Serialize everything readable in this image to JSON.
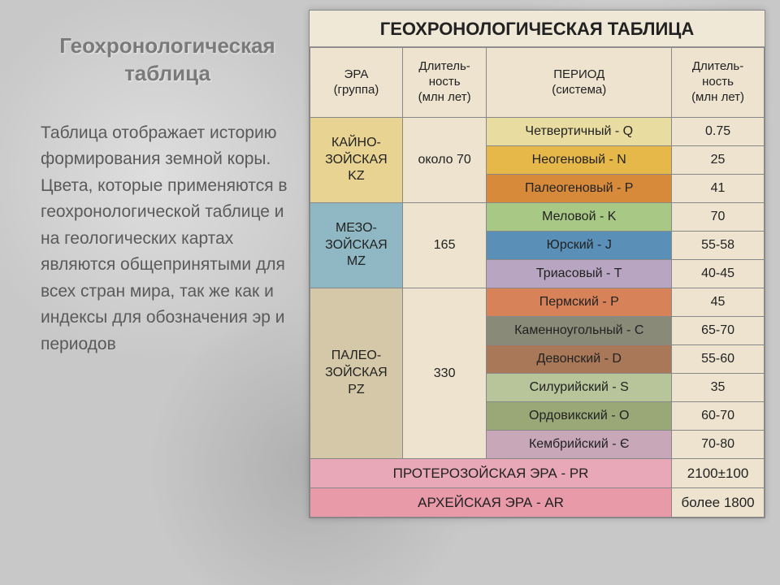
{
  "left_panel": {
    "heading": "Геохронологическая таблица",
    "paragraph": "Таблица отображает историю формирования земной коры. Цвета, которые применяются в геохронологической таблице и на геологических картах являются общепринятыми для всех стран мира, так же как и индексы для обозначения эр и периодов"
  },
  "table": {
    "title": "ГЕОХРОНОЛОГИЧЕСКАЯ ТАБЛИЦА",
    "headers": {
      "era": "ЭРА\n(группа)",
      "dur1": "Длитель-\nность\n(млн лет)",
      "period": "ПЕРИОД\n(система)",
      "dur2": "Длитель-\nность\n(млн лет)"
    },
    "eras": [
      {
        "name": "КАЙНО-\nЗОЙСКАЯ\nKZ",
        "era_bg": "#e8d392",
        "duration": "около 70",
        "dur_bg": "#ede3cf",
        "periods": [
          {
            "name": "Четвертичный - Q",
            "dur": "0.75",
            "bg": "#e8dca0"
          },
          {
            "name": "Неогеновый - N",
            "dur": "25",
            "bg": "#e6b84a"
          },
          {
            "name": "Палеогеновый - P",
            "dur": "41",
            "bg": "#d68a3a"
          }
        ]
      },
      {
        "name": "МЕЗО-\nЗОЙСКАЯ\nMZ",
        "era_bg": "#8fb8c4",
        "duration": "165",
        "dur_bg": "#ede3cf",
        "periods": [
          {
            "name": "Меловой - K",
            "dur": "70",
            "bg": "#a8c885"
          },
          {
            "name": "Юрский - J",
            "dur": "55-58",
            "bg": "#5a8fb8"
          },
          {
            "name": "Триасовый - T",
            "dur": "40-45",
            "bg": "#b8a5c2"
          }
        ]
      },
      {
        "name": "ПАЛЕО-\nЗОЙСКАЯ\nPZ",
        "era_bg": "#d4c8a8",
        "duration": "330",
        "dur_bg": "#ede3cf",
        "periods": [
          {
            "name": "Пермский - P",
            "dur": "45",
            "bg": "#d8825a"
          },
          {
            "name": "Каменноугольный - C",
            "dur": "65-70",
            "bg": "#8a8a78"
          },
          {
            "name": "Девонский - D",
            "dur": "55-60",
            "bg": "#a87858"
          },
          {
            "name": "Силурийский - S",
            "dur": "35",
            "bg": "#b8c49a"
          },
          {
            "name": "Ордовикский - O",
            "dur": "60-70",
            "bg": "#9aa878"
          },
          {
            "name": "Кембрийский - Є",
            "dur": "70-80",
            "bg": "#c8a8b8"
          }
        ]
      }
    ],
    "bottom_eras": [
      {
        "label": "ПРОТЕРОЗОЙСКАЯ ЭРА  -  PR",
        "dur": "2100±100",
        "bg": "#e8a8b8"
      },
      {
        "label": "АРХЕЙСКАЯ ЭРА  -  AR",
        "dur": "более 1800",
        "bg": "#e89aa8"
      }
    ],
    "style": {
      "header_bg": "#ede3cf",
      "dur_cell_bg": "#ede3cf",
      "border_color": "#888"
    }
  }
}
